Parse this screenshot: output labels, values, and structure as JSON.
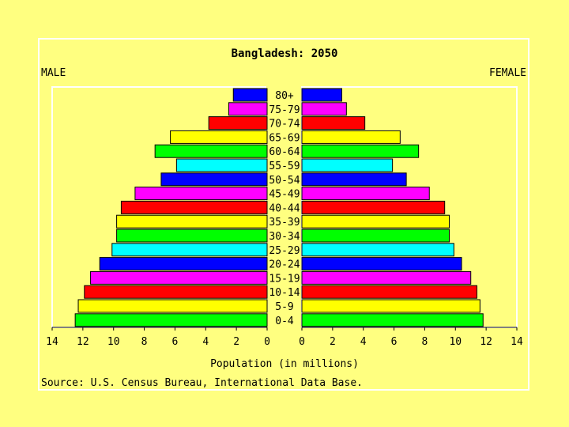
{
  "chart_data": {
    "type": "bar",
    "title": "Bangladesh: 2050",
    "left_label": "MALE",
    "right_label": "FEMALE",
    "xlabel": "Population (in millions)",
    "source": "Source: U.S. Census Bureau, International Data Base.",
    "xlim": [
      0,
      14
    ],
    "x_ticks": [
      "14",
      "12",
      "10",
      "8",
      "6",
      "4",
      "2",
      "0",
      "0",
      "2",
      "4",
      "6",
      "8",
      "10",
      "12",
      "14"
    ],
    "categories": [
      "80+",
      "75-79",
      "70-74",
      "65-69",
      "60-64",
      "55-59",
      "50-54",
      "45-49",
      "40-44",
      "35-39",
      "30-34",
      "25-29",
      "20-24",
      "15-19",
      "10-14",
      "5-9",
      "0-4"
    ],
    "colors": [
      "#0000ff",
      "#ff00ff",
      "#ff0000",
      "#ffff00",
      "#00ff00",
      "#00ffff",
      "#0000ff",
      "#ff00ff",
      "#ff0000",
      "#ffff00",
      "#00ff00",
      "#00ffff",
      "#0000ff",
      "#ff00ff",
      "#ff0000",
      "#ffff00",
      "#00ff00"
    ],
    "series": [
      {
        "name": "MALE",
        "values": [
          2.2,
          2.5,
          3.8,
          6.3,
          7.3,
          5.9,
          6.9,
          8.6,
          9.5,
          9.8,
          9.8,
          10.1,
          10.9,
          11.5,
          11.9,
          12.3,
          12.5
        ]
      },
      {
        "name": "FEMALE",
        "values": [
          2.6,
          2.9,
          4.1,
          6.4,
          7.6,
          5.9,
          6.8,
          8.3,
          9.3,
          9.6,
          9.6,
          9.9,
          10.4,
          11.0,
          11.4,
          11.6,
          11.8
        ]
      }
    ],
    "grid": false
  }
}
